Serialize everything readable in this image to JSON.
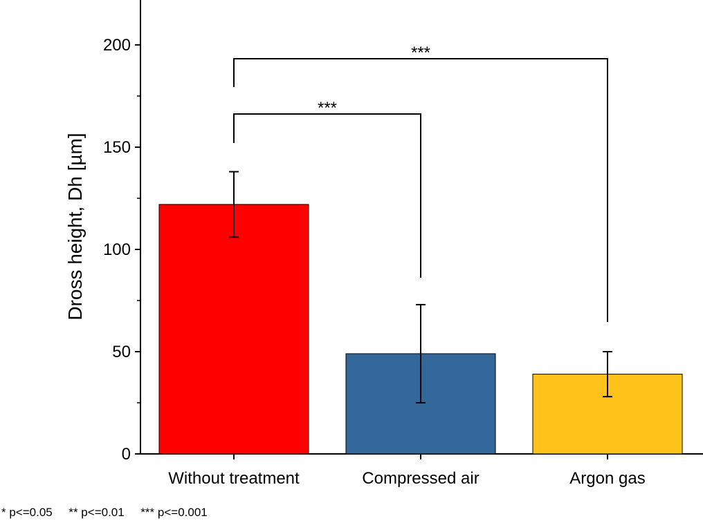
{
  "chart_data": {
    "type": "bar",
    "title": "",
    "xlabel": "",
    "ylabel": "Dross height, Dh [µm]",
    "ylim": [
      0,
      220
    ],
    "yticks": [
      0,
      50,
      100,
      150,
      200
    ],
    "grid": false,
    "categories": [
      "Without treatment",
      "Compressed air",
      "Argon gas"
    ],
    "values": [
      122,
      49,
      39
    ],
    "errors": [
      16,
      24,
      11
    ],
    "colors": [
      "#ff0000",
      "#336699",
      "#ffc21a"
    ],
    "significance": [
      {
        "from": 0,
        "to": 1,
        "label": "***"
      },
      {
        "from": 0,
        "to": 2,
        "label": "***"
      }
    ]
  },
  "footnote": "* p<=0.05     ** p<=0.01     *** p<=0.001"
}
